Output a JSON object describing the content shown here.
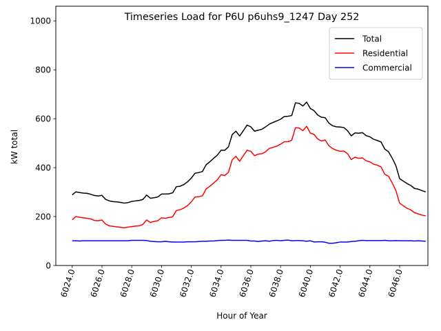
{
  "chart_data": {
    "type": "line",
    "title": "Timeseries Load for P6U p6uhs9_1247  Day 252",
    "xlabel": "Hour of Year",
    "ylabel": "kW total",
    "xlim": [
      6022.9,
      6047.9
    ],
    "ylim": [
      0,
      1060
    ],
    "xticks": [
      6024,
      6026,
      6028,
      6030,
      6032,
      6034,
      6036,
      6038,
      6040,
      6042,
      6044,
      6046
    ],
    "xtick_labels": [
      "6024.0",
      "6026.0",
      "6028.0",
      "6030.0",
      "6032.0",
      "6034.0",
      "6036.0",
      "6038.0",
      "6040.0",
      "6042.0",
      "6044.0",
      "6046.0"
    ],
    "yticks": [
      0,
      200,
      400,
      600,
      800,
      1000
    ],
    "ytick_labels": [
      "0",
      "200",
      "400",
      "600",
      "800",
      "1000"
    ],
    "legend_position": "top-right",
    "x": [
      6024.0,
      6024.25,
      6024.5,
      6024.75,
      6025.0,
      6025.25,
      6025.5,
      6025.75,
      6026.0,
      6026.25,
      6026.5,
      6026.75,
      6027.0,
      6027.25,
      6027.5,
      6027.75,
      6028.0,
      6028.25,
      6028.5,
      6028.75,
      6029.0,
      6029.25,
      6029.5,
      6029.75,
      6030.0,
      6030.25,
      6030.5,
      6030.75,
      6031.0,
      6031.25,
      6031.5,
      6031.75,
      6032.0,
      6032.25,
      6032.5,
      6032.75,
      6033.0,
      6033.25,
      6033.5,
      6033.75,
      6034.0,
      6034.25,
      6034.5,
      6034.75,
      6035.0,
      6035.25,
      6035.5,
      6035.75,
      6036.0,
      6036.25,
      6036.5,
      6036.75,
      6037.0,
      6037.25,
      6037.5,
      6037.75,
      6038.0,
      6038.25,
      6038.5,
      6038.75,
      6039.0,
      6039.25,
      6039.5,
      6039.75,
      6040.0,
      6040.25,
      6040.5,
      6040.75,
      6041.0,
      6041.25,
      6041.5,
      6041.75,
      6042.0,
      6042.25,
      6042.5,
      6042.75,
      6043.0,
      6043.25,
      6043.5,
      6043.75,
      6044.0,
      6044.25,
      6044.5,
      6044.75,
      6045.0,
      6045.25,
      6045.5,
      6045.75,
      6046.0,
      6046.25,
      6046.5,
      6046.75,
      6047.0,
      6047.25,
      6047.5,
      6047.75
    ],
    "series": [
      {
        "name": "Total",
        "color": "#000000",
        "values": [
          289,
          301,
          298,
          296,
          295,
          291,
          286,
          284,
          287,
          270,
          264,
          261,
          260,
          258,
          255,
          257,
          262,
          264,
          266,
          270,
          288,
          275,
          277,
          280,
          292,
          292,
          293,
          297,
          322,
          324,
          331,
          342,
          357,
          377,
          380,
          384,
          412,
          424,
          438,
          451,
          471,
          471,
          485,
          535,
          549,
          529,
          551,
          574,
          567,
          549,
          553,
          557,
          567,
          578,
          585,
          591,
          598,
          609,
          610,
          613,
          665,
          663,
          652,
          668,
          642,
          633,
          615,
          606,
          604,
          582,
          571,
          567,
          566,
          564,
          551,
          530,
          542,
          541,
          543,
          531,
          526,
          516,
          511,
          505,
          476,
          465,
          439,
          408,
          355,
          345,
          335,
          327,
          315,
          312,
          306,
          301
        ]
      },
      {
        "name": "Residential",
        "color": "#ff0000",
        "values": [
          187,
          200,
          197,
          195,
          193,
          190,
          184,
          183,
          186,
          169,
          162,
          160,
          158,
          156,
          154,
          157,
          159,
          161,
          162,
          168,
          186,
          176,
          180,
          183,
          195,
          193,
          196,
          199,
          225,
          228,
          235,
          245,
          260,
          280,
          281,
          285,
          313,
          324,
          337,
          350,
          371,
          368,
          381,
          432,
          446,
          426,
          449,
          471,
          467,
          449,
          455,
          457,
          465,
          479,
          483,
          488,
          496,
          506,
          506,
          512,
          563,
          562,
          551,
          569,
          541,
          536,
          517,
          509,
          513,
          489,
          478,
          471,
          467,
          468,
          457,
          433,
          443,
          438,
          440,
          428,
          424,
          414,
          410,
          403,
          373,
          365,
          338,
          306,
          255,
          244,
          234,
          227,
          216,
          211,
          206,
          203
        ]
      },
      {
        "name": "Commercial",
        "color": "#0000ff",
        "values": [
          101,
          101,
          100,
          101,
          101,
          101,
          101,
          101,
          101,
          101,
          101,
          101,
          101,
          101,
          101,
          101,
          103,
          103,
          103,
          103,
          102,
          99,
          98,
          97,
          97,
          99,
          97,
          96,
          96,
          96,
          96,
          97,
          97,
          97,
          98,
          99,
          99,
          100,
          100,
          102,
          103,
          103,
          104,
          103,
          103,
          103,
          103,
          103,
          100,
          100,
          98,
          100,
          101,
          99,
          102,
          103,
          101,
          103,
          104,
          101,
          102,
          102,
          101,
          99,
          101,
          96,
          97,
          97,
          95,
          91,
          91,
          93,
          96,
          96,
          96,
          98,
          99,
          101,
          103,
          102,
          102,
          102,
          102,
          102,
          103,
          101,
          101,
          102,
          101,
          101,
          101,
          101,
          100,
          101,
          100,
          99
        ]
      }
    ]
  }
}
